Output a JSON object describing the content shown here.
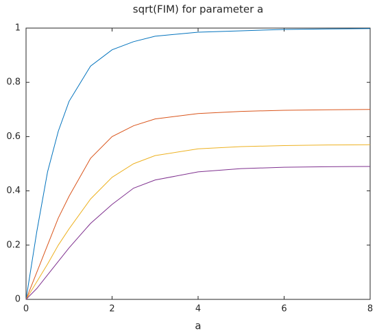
{
  "chart_data": {
    "type": "line",
    "title": "sqrt(FIM) for parameter a",
    "xlabel": "a",
    "x": [
      0,
      0.25,
      0.5,
      0.75,
      1,
      1.5,
      2,
      2.5,
      3,
      4,
      5,
      6,
      7,
      8
    ],
    "series": [
      {
        "color": "#0072bd",
        "values": [
          0,
          0.25,
          0.47,
          0.62,
          0.73,
          0.86,
          0.92,
          0.95,
          0.97,
          0.985,
          0.99,
          0.995,
          0.997,
          0.998
        ]
      },
      {
        "color": "#d95319",
        "values": [
          0,
          0.1,
          0.2,
          0.3,
          0.38,
          0.52,
          0.6,
          0.64,
          0.665,
          0.685,
          0.693,
          0.697,
          0.699,
          0.7
        ]
      },
      {
        "color": "#edb120",
        "values": [
          0,
          0.065,
          0.13,
          0.2,
          0.26,
          0.37,
          0.45,
          0.5,
          0.53,
          0.555,
          0.563,
          0.567,
          0.569,
          0.57
        ]
      },
      {
        "color": "#7e2f8e",
        "values": [
          0,
          0.04,
          0.09,
          0.14,
          0.19,
          0.28,
          0.35,
          0.41,
          0.44,
          0.47,
          0.482,
          0.487,
          0.489,
          0.49
        ]
      }
    ],
    "xlim": [
      0,
      8
    ],
    "xticks": [
      0,
      2,
      4,
      6,
      8
    ],
    "ylim": [
      0,
      1
    ],
    "yticks": [
      0,
      0.2,
      0.4,
      0.6,
      0.8,
      1
    ]
  }
}
